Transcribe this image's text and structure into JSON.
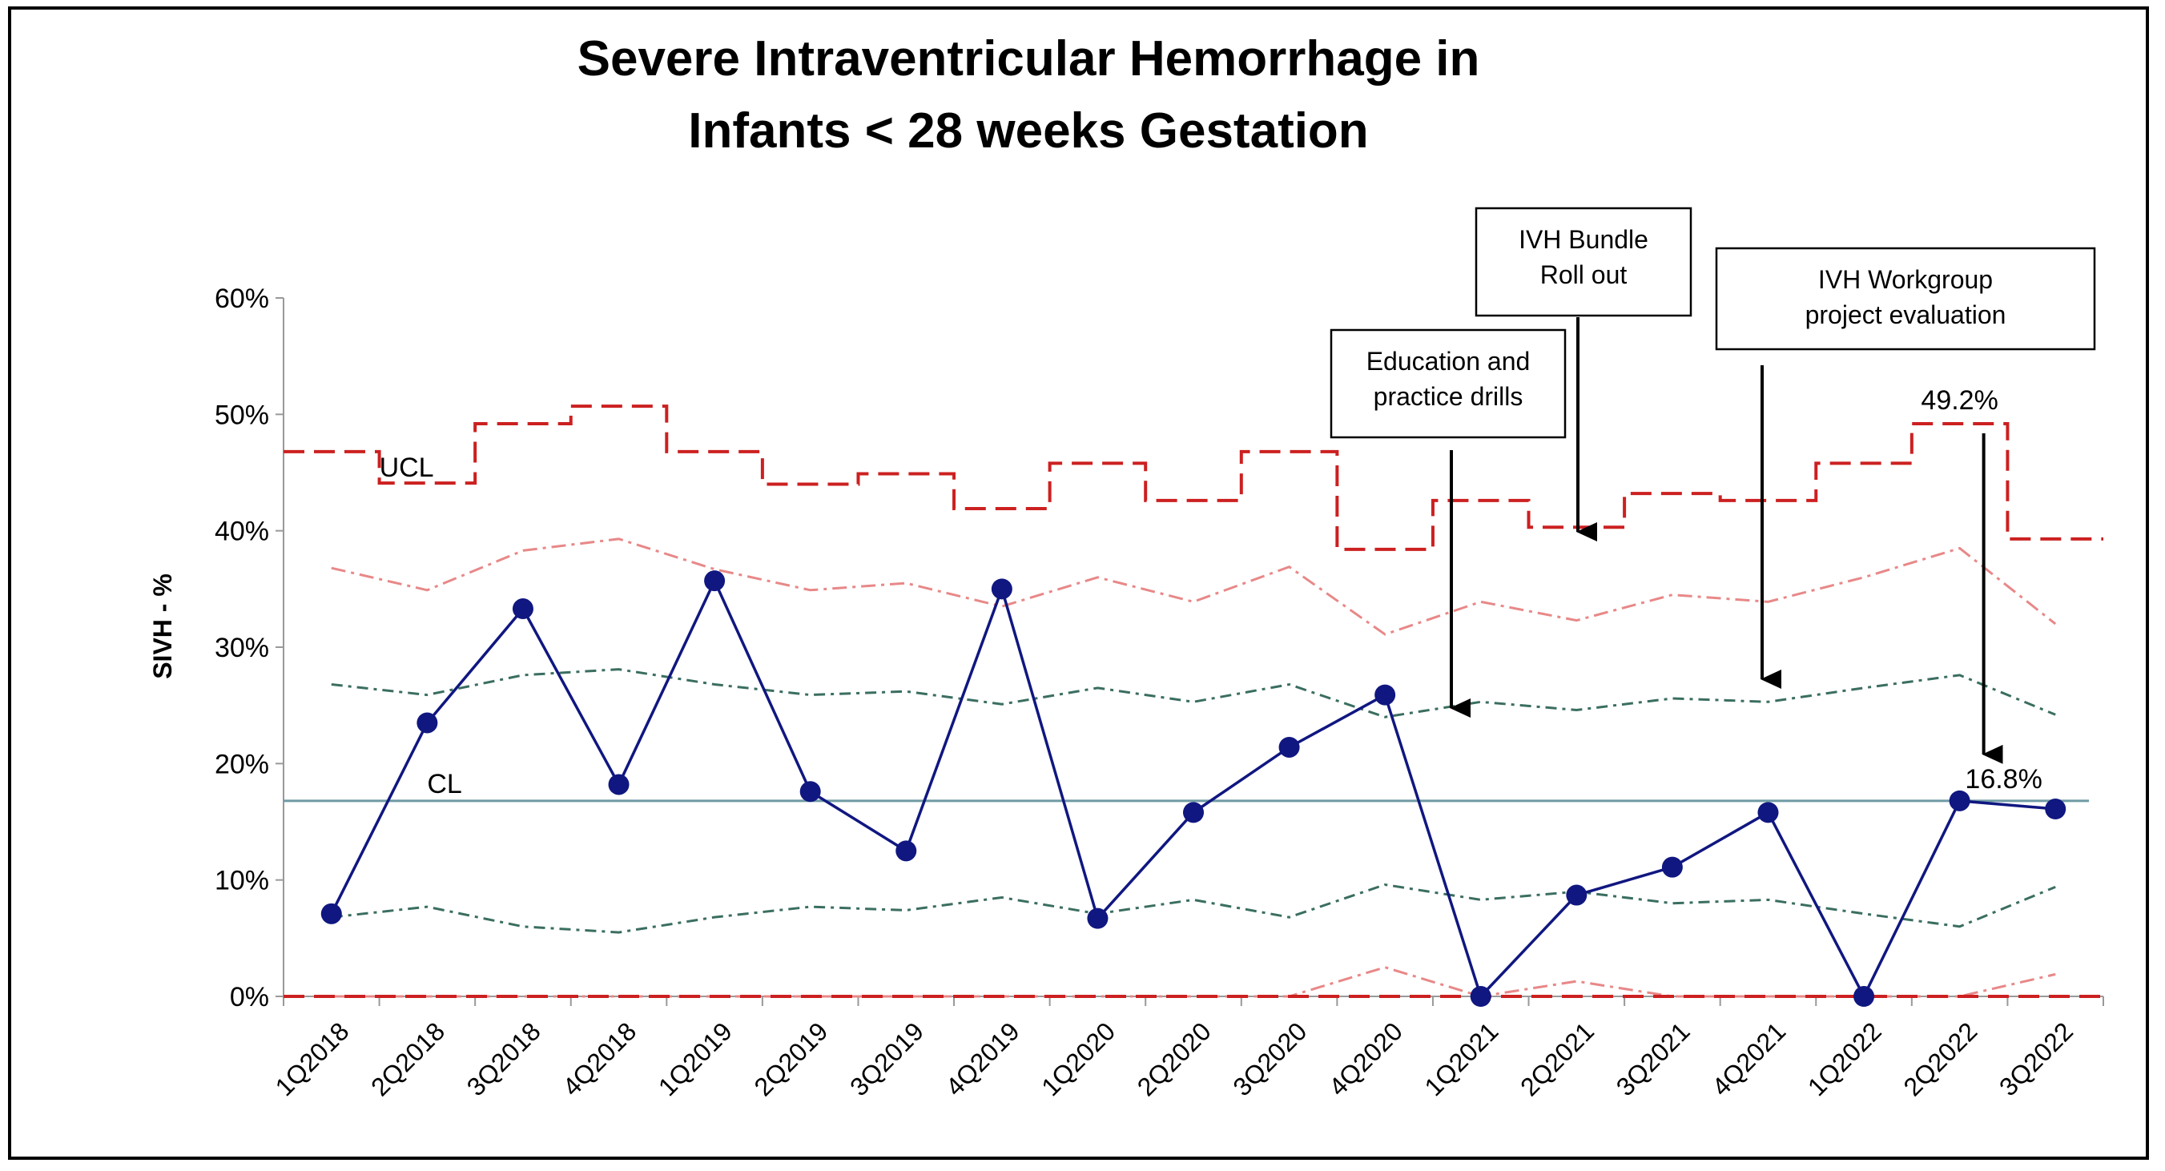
{
  "chart_data": {
    "type": "line",
    "title_lines": [
      "Severe Intraventricular Hemorrhage in",
      "Infants < 28 weeks Gestation"
    ],
    "ylabel": "SIVH - %",
    "xlabel": "",
    "ylim": [
      0,
      60
    ],
    "yticks": [
      "0%",
      "10%",
      "20%",
      "30%",
      "40%",
      "50%",
      "60%"
    ],
    "categories": [
      "1Q2018",
      "2Q2018",
      "3Q2018",
      "4Q2018",
      "1Q2019",
      "2Q2019",
      "3Q2019",
      "4Q2019",
      "1Q2020",
      "2Q2020",
      "3Q2020",
      "4Q2020",
      "1Q2021",
      "2Q2021",
      "3Q2021",
      "4Q2021",
      "1Q2022",
      "2Q2022",
      "3Q2022"
    ],
    "series": [
      {
        "role": "data",
        "color": "#101780",
        "values": [
          7.1,
          23.5,
          33.3,
          18.2,
          35.7,
          17.6,
          12.5,
          35.0,
          6.7,
          15.8,
          21.4,
          25.9,
          0.0,
          8.7,
          11.1,
          15.8,
          0.0,
          16.8,
          16.1
        ]
      },
      {
        "role": "ucl",
        "color": "#cc2020",
        "values": [
          46.8,
          44.1,
          49.2,
          50.7,
          46.8,
          44.0,
          44.9,
          41.9,
          45.8,
          42.6,
          46.8,
          38.4,
          42.6,
          40.3,
          43.2,
          42.6,
          45.8,
          49.2,
          39.3
        ]
      },
      {
        "role": "upper-2-sigma",
        "color": "#e88888",
        "values": [
          36.8,
          34.9,
          38.3,
          39.3,
          36.7,
          34.9,
          35.5,
          33.5,
          36.0,
          33.9,
          36.9,
          31.1,
          33.9,
          32.3,
          34.5,
          33.9,
          36.0,
          38.5,
          32.0
        ]
      },
      {
        "role": "upper-1-sigma",
        "color": "#3a6e60",
        "values": [
          26.8,
          25.9,
          27.6,
          28.1,
          26.8,
          25.9,
          26.2,
          25.1,
          26.5,
          25.3,
          26.8,
          24.0,
          25.3,
          24.6,
          25.6,
          25.3,
          26.5,
          27.6,
          24.2
        ]
      },
      {
        "role": "lower-1-sigma",
        "color": "#3a6e60",
        "values": [
          6.8,
          7.7,
          6.0,
          5.5,
          6.8,
          7.7,
          7.4,
          8.5,
          7.1,
          8.3,
          6.8,
          9.6,
          8.3,
          9.0,
          8.0,
          8.3,
          7.1,
          6.0,
          9.4
        ]
      },
      {
        "role": "lower-2-sigma",
        "color": "#e88888",
        "values": [
          0,
          0,
          0,
          0,
          0,
          0,
          0,
          0,
          0,
          0,
          0,
          2.5,
          0,
          1.3,
          0,
          0,
          0,
          0,
          1.9
        ]
      },
      {
        "role": "lcl",
        "color": "#cc2020",
        "values": [
          0,
          0,
          0,
          0,
          0,
          0,
          0,
          0,
          0,
          0,
          0,
          0,
          0,
          0,
          0,
          0,
          0,
          0,
          0
        ]
      }
    ],
    "center_line": {
      "value": 16.8,
      "color": "#6f9ba5"
    },
    "labels": {
      "ucl": "UCL",
      "cl": "CL",
      "ucl_value": "49.2%",
      "cl_value": "16.8%"
    },
    "annotations": [
      {
        "lines": [
          "Education and",
          "practice drills"
        ],
        "category_index": 12
      },
      {
        "lines": [
          "IVH Bundle",
          "Roll out"
        ],
        "category_index": 13
      },
      {
        "lines": [
          "IVH Workgroup",
          "project evaluation"
        ],
        "category_index": 15
      }
    ],
    "grid": false,
    "legend": "none"
  }
}
